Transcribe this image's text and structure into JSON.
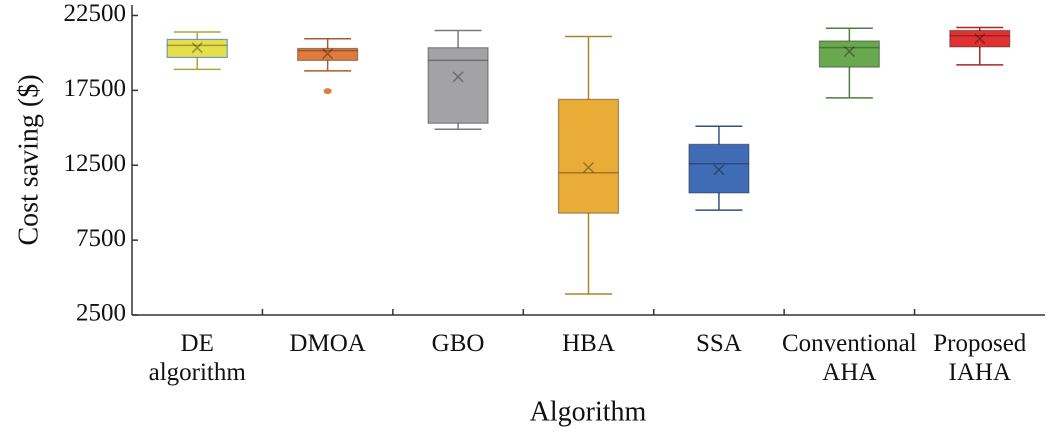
{
  "chart_data": {
    "type": "box",
    "x_label": "Algorithm",
    "y_label": "Cost saving ($)",
    "categories": [
      "DE algorithm",
      "DMOA",
      "GBO",
      "HBA",
      "SSA",
      "Conventional AHA",
      "Proposed IAHA"
    ],
    "colors": [
      "#e6df4c",
      "#e07b3b",
      "#a3a3a6",
      "#e9ad37",
      "#3f6cb4",
      "#6aa84f",
      "#e03232"
    ],
    "boxes": [
      {
        "min": 18900,
        "q1": 19700,
        "median": 20500,
        "q3": 20900,
        "max": 21400,
        "mean": 20350
      },
      {
        "min": 18800,
        "q1": 19500,
        "median": 20150,
        "q3": 20300,
        "max": 20950,
        "mean": 19950,
        "outliers": [
          17450
        ]
      },
      {
        "min": 14900,
        "q1": 15300,
        "median": 19500,
        "q3": 20350,
        "max": 21500,
        "mean": 18400
      },
      {
        "min": 3900,
        "q1": 9300,
        "median": 12000,
        "q3": 16900,
        "max": 21100,
        "mean": 12350
      },
      {
        "min": 9500,
        "q1": 10650,
        "median": 12600,
        "q3": 13900,
        "max": 15100,
        "mean": 12200
      },
      {
        "min": 17000,
        "q1": 19050,
        "median": 20350,
        "q3": 20800,
        "max": 21650,
        "mean": 20100
      },
      {
        "min": 19200,
        "q1": 20400,
        "median": 21150,
        "q3": 21500,
        "max": 21700,
        "mean": 20950
      }
    ],
    "ylim": [
      2500,
      23200
    ],
    "yticks": [
      2500,
      7500,
      12500,
      17500,
      22500
    ]
  }
}
